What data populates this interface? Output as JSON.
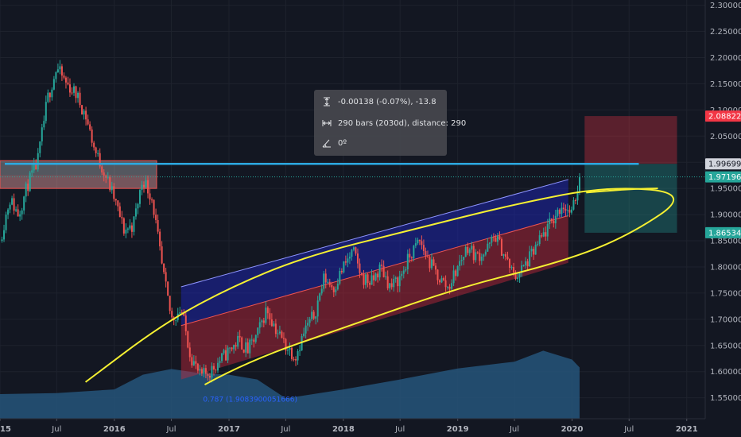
{
  "chart_data": {
    "type": "candlestick",
    "title": "",
    "ylim": [
      1.51,
      2.31
    ],
    "xlim": [
      "2015-01-01",
      "2021-03-01"
    ],
    "y_ticks": [
      "2.30000",
      "2.25000",
      "2.20000",
      "2.15000",
      "2.10000",
      "2.05000",
      "2.00000",
      "1.95000",
      "1.90000",
      "1.85000",
      "1.80000",
      "1.75000",
      "1.70000",
      "1.65000",
      "1.60000",
      "1.55000"
    ],
    "x_ticks": [
      {
        "label": "2015",
        "date": "2015-01-01"
      },
      {
        "label": "Jul",
        "date": "2015-07-01"
      },
      {
        "label": "2016",
        "date": "2016-01-01"
      },
      {
        "label": "Jul",
        "date": "2016-07-01"
      },
      {
        "label": "2017",
        "date": "2017-01-01"
      },
      {
        "label": "Jul",
        "date": "2017-07-01"
      },
      {
        "label": "2018",
        "date": "2018-01-01"
      },
      {
        "label": "Jul",
        "date": "2018-07-01"
      },
      {
        "label": "2019",
        "date": "2019-01-01"
      },
      {
        "label": "Jul",
        "date": "2019-07-01"
      },
      {
        "label": "2020",
        "date": "2020-01-01"
      },
      {
        "label": "Jul",
        "date": "2020-07-01"
      },
      {
        "label": "2021",
        "date": "2021-01-01"
      }
    ],
    "price_path": [
      [
        "2015-01-01",
        1.85
      ],
      [
        "2015-02-01",
        1.93
      ],
      [
        "2015-03-01",
        1.9
      ],
      [
        "2015-04-01",
        1.96
      ],
      [
        "2015-05-01",
        2.0
      ],
      [
        "2015-06-01",
        2.12
      ],
      [
        "2015-07-01",
        2.18
      ],
      [
        "2015-08-01",
        2.15
      ],
      [
        "2015-09-01",
        2.13
      ],
      [
        "2015-10-01",
        2.09
      ],
      [
        "2015-11-01",
        2.02
      ],
      [
        "2015-12-01",
        1.98
      ],
      [
        "2016-01-01",
        1.93
      ],
      [
        "2016-02-01",
        1.87
      ],
      [
        "2016-03-01",
        1.88
      ],
      [
        "2016-04-01",
        1.97
      ],
      [
        "2016-05-01",
        1.93
      ],
      [
        "2016-06-01",
        1.8
      ],
      [
        "2016-07-01",
        1.7
      ],
      [
        "2016-08-01",
        1.72
      ],
      [
        "2016-09-01",
        1.63
      ],
      [
        "2016-10-01",
        1.59
      ],
      [
        "2016-11-01",
        1.6
      ],
      [
        "2016-12-01",
        1.62
      ],
      [
        "2017-01-01",
        1.64
      ],
      [
        "2017-02-01",
        1.66
      ],
      [
        "2017-03-01",
        1.64
      ],
      [
        "2017-04-01",
        1.67
      ],
      [
        "2017-05-01",
        1.72
      ],
      [
        "2017-06-01",
        1.68
      ],
      [
        "2017-07-01",
        1.65
      ],
      [
        "2017-08-01",
        1.63
      ],
      [
        "2017-09-01",
        1.68
      ],
      [
        "2017-10-01",
        1.71
      ],
      [
        "2017-11-01",
        1.78
      ],
      [
        "2017-12-01",
        1.76
      ],
      [
        "2018-01-01",
        1.8
      ],
      [
        "2018-02-01",
        1.83
      ],
      [
        "2018-03-01",
        1.78
      ],
      [
        "2018-04-01",
        1.77
      ],
      [
        "2018-05-01",
        1.8
      ],
      [
        "2018-06-01",
        1.76
      ],
      [
        "2018-07-01",
        1.78
      ],
      [
        "2018-08-01",
        1.82
      ],
      [
        "2018-09-01",
        1.85
      ],
      [
        "2018-10-01",
        1.81
      ],
      [
        "2018-11-01",
        1.78
      ],
      [
        "2018-12-01",
        1.76
      ],
      [
        "2019-01-01",
        1.8
      ],
      [
        "2019-02-01",
        1.84
      ],
      [
        "2019-03-01",
        1.82
      ],
      [
        "2019-04-01",
        1.83
      ],
      [
        "2019-05-01",
        1.86
      ],
      [
        "2019-06-01",
        1.82
      ],
      [
        "2019-07-01",
        1.78
      ],
      [
        "2019-08-01",
        1.8
      ],
      [
        "2019-09-01",
        1.83
      ],
      [
        "2019-10-01",
        1.86
      ],
      [
        "2019-11-01",
        1.89
      ],
      [
        "2019-12-01",
        1.92
      ],
      [
        "2020-01-01",
        1.9
      ],
      [
        "2020-01-25",
        1.972
      ]
    ],
    "volume_path": [
      [
        "2015-01-01",
        1.557
      ],
      [
        "2015-07-01",
        1.559
      ],
      [
        "2016-01-01",
        1.566
      ],
      [
        "2016-04-01",
        1.594
      ],
      [
        "2016-07-01",
        1.605
      ],
      [
        "2016-10-01",
        1.597
      ],
      [
        "2017-01-01",
        1.594
      ],
      [
        "2017-04-01",
        1.585
      ],
      [
        "2017-07-01",
        1.549
      ],
      [
        "2018-01-01",
        1.566
      ],
      [
        "2018-07-01",
        1.585
      ],
      [
        "2019-01-01",
        1.606
      ],
      [
        "2019-07-01",
        1.619
      ],
      [
        "2019-10-01",
        1.64
      ],
      [
        "2020-01-01",
        1.623
      ],
      [
        "2020-01-25",
        1.608
      ]
    ],
    "resistance_line": {
      "y": 1.99699,
      "color": "#2ca9e1"
    },
    "current_price_line": {
      "y": 1.97196,
      "color": "#26a69a"
    },
    "supply_zone": {
      "x0": "2015-01-01",
      "x1": "2016-05-15",
      "y0": 1.95,
      "y1": 2.003
    },
    "channel_upper_half": [
      [
        "2016-08-01",
        1.762
      ],
      [
        "2019-12-20",
        1.967
      ],
      [
        "2019-12-20",
        1.898
      ],
      [
        "2016-08-01",
        1.688
      ]
    ],
    "channel_lower_half": [
      [
        "2016-08-01",
        1.688
      ],
      [
        "2019-12-20",
        1.898
      ],
      [
        "2019-12-20",
        1.808
      ],
      [
        "2016-08-01",
        1.585
      ]
    ],
    "short_position": {
      "x0": "2020-02-10",
      "x1": "2020-12-01",
      "stop": 2.08822,
      "entry": 1.99699,
      "target": 1.86534
    },
    "ellipse_points": [
      [
        "2015-10-01",
        1.58
      ],
      [
        "2016-06-01",
        1.69
      ],
      [
        "2017-01-01",
        1.76
      ],
      [
        "2017-09-01",
        1.82
      ],
      [
        "2018-08-01",
        1.87
      ],
      [
        "2019-07-01",
        1.92
      ],
      [
        "2020-05-01",
        1.955
      ],
      [
        "2021-01-15",
        1.94
      ],
      [
        "2020-07-01",
        1.86
      ],
      [
        "2019-12-01",
        1.81
      ],
      [
        "2019-01-01",
        1.76
      ],
      [
        "2018-02-01",
        1.69
      ],
      [
        "2017-03-01",
        1.62
      ],
      [
        "2016-06-01",
        1.53
      ]
    ],
    "curl_points": [
      [
        "2020-02-15",
        1.942
      ],
      [
        "2020-07-15",
        1.95
      ],
      [
        "2020-10-01",
        1.95
      ]
    ],
    "fib_label": {
      "text": "0.787 (1.9083900051666)",
      "date": "2016-10-10",
      "y": 1.543
    },
    "price_badges": [
      {
        "text": "2.08822",
        "y": 2.08822,
        "bg": "#f23645",
        "fg": "#ffffff"
      },
      {
        "text": "1.99699",
        "y": 1.99699,
        "bg": "#d1d4dc",
        "fg": "#131722"
      },
      {
        "text": "1.97196",
        "y": 1.97196,
        "bg": "#26a69a",
        "fg": "#ffffff"
      },
      {
        "text": "1.86534",
        "y": 1.86534,
        "bg": "#26a69a",
        "fg": "#ffffff"
      }
    ],
    "grid": true,
    "colors": {
      "up": "#26a69a",
      "down": "#ef5350",
      "background": "#131722",
      "grid": "#1e222d",
      "volume": "#26557a",
      "axis_text": "#b2b5be"
    }
  },
  "measure_tooltip": {
    "line1": "-0.00138 (-0.07%), -13.8",
    "line2": "290 bars (2030d), distance: 290",
    "line3": "0º"
  }
}
